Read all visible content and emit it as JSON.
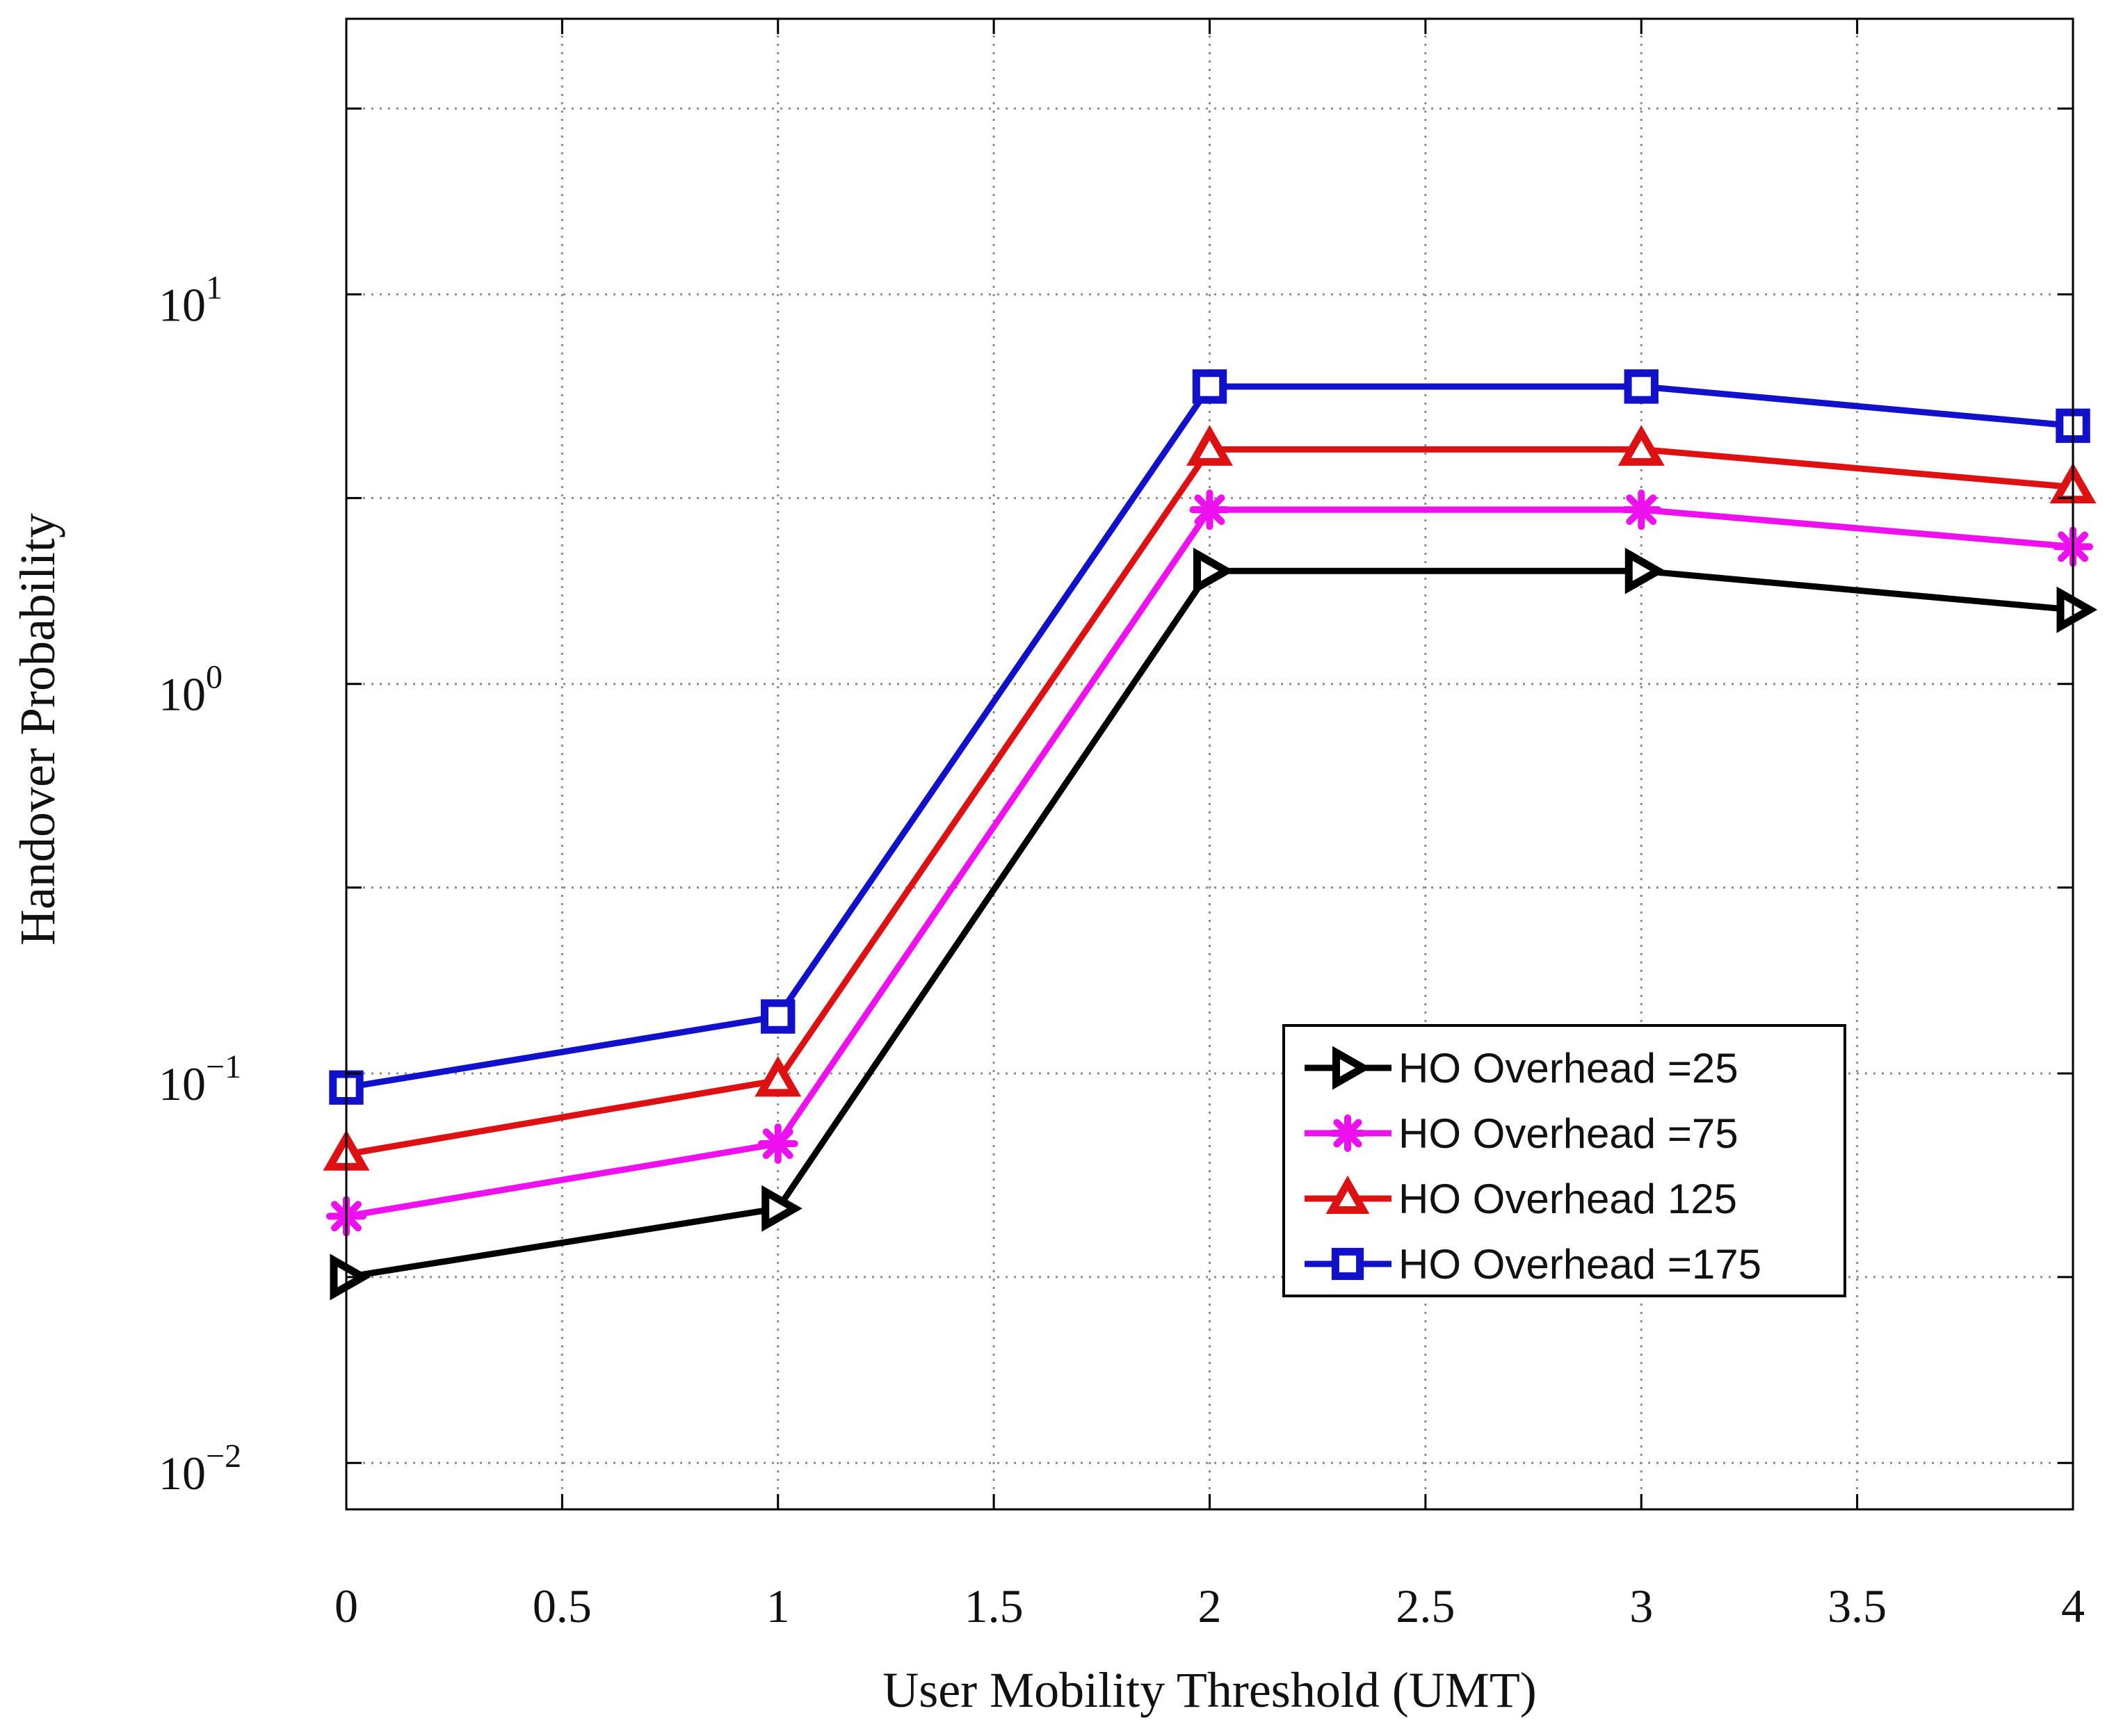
{
  "chart_data": {
    "type": "line",
    "xlabel": "User Mobility Threshold (UMT)",
    "ylabel": "Handover Probability",
    "x_ticks": [
      {
        "value": 0,
        "label": "0"
      },
      {
        "value": 0.5,
        "label": "0.5"
      },
      {
        "value": 1,
        "label": "1"
      },
      {
        "value": 1.5,
        "label": "1.5"
      },
      {
        "value": 2,
        "label": "2"
      },
      {
        "value": 2.5,
        "label": "2.5"
      },
      {
        "value": 3,
        "label": "3"
      },
      {
        "value": 3.5,
        "label": "3.5"
      },
      {
        "value": 4,
        "label": "4"
      }
    ],
    "y_ticks": [
      {
        "value": 0.01,
        "base": "10",
        "exp": "−2"
      },
      {
        "value": 0.1,
        "base": "10",
        "exp": "−1"
      },
      {
        "value": 1,
        "base": "10",
        "exp": "0"
      },
      {
        "value": 10,
        "base": "10",
        "exp": "1"
      }
    ],
    "y_scale": "log",
    "xlim": [
      0,
      4
    ],
    "ylim": [
      0.0076,
      51
    ],
    "grid": true,
    "legend_position": "center-right",
    "series": [
      {
        "name": "HO Overhead =25",
        "color": "#000000",
        "marker": "triangle-right",
        "x": [
          0,
          1,
          2,
          3,
          4
        ],
        "y": [
          0.03,
          0.045,
          1.95,
          1.95,
          1.55
        ]
      },
      {
        "name": "HO Overhead =75",
        "color": "#ee10ee",
        "marker": "asterisk",
        "x": [
          0,
          1,
          2,
          3,
          4
        ],
        "y": [
          0.043,
          0.066,
          2.8,
          2.8,
          2.25
        ]
      },
      {
        "name": "HO Overhead 125",
        "color": "#dd1111",
        "marker": "triangle-up",
        "x": [
          0,
          1,
          2,
          3,
          4
        ],
        "y": [
          0.062,
          0.096,
          4.0,
          4.0,
          3.2
        ]
      },
      {
        "name": "HO Overhead =175",
        "color": "#1111cc",
        "marker": "square",
        "x": [
          0,
          1,
          2,
          3,
          4
        ],
        "y": [
          0.092,
          0.14,
          5.8,
          5.8,
          4.6
        ]
      }
    ]
  }
}
